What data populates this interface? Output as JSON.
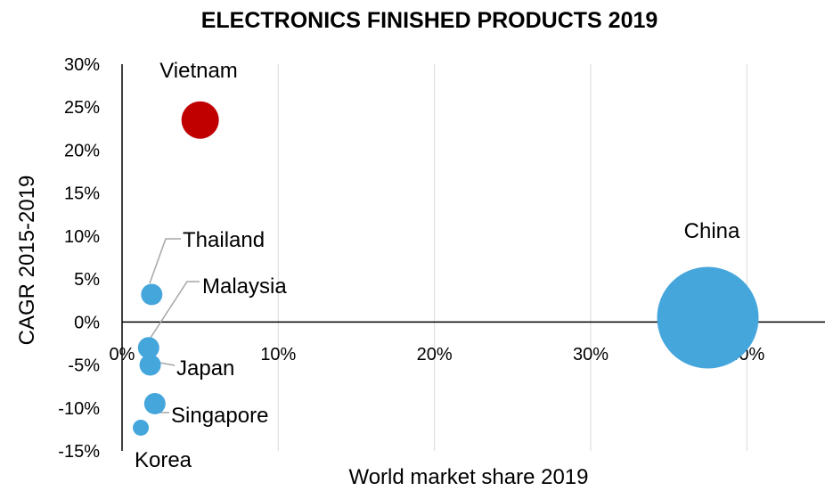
{
  "chart_data": {
    "type": "scatter",
    "title": "ELECTRONICS FINISHED PRODUCTS 2019",
    "xlabel": "World market share 2019",
    "ylabel": "CAGR 2015-2019",
    "xlim": [
      0,
      45
    ],
    "ylim": [
      -15,
      30
    ],
    "x_ticks": [
      "0%",
      "10%",
      "20%",
      "30%",
      "40%"
    ],
    "y_ticks": [
      "30%",
      "25%",
      "20%",
      "15%",
      "10%",
      "5%",
      "0%",
      "-5%",
      "-10%",
      "-15%"
    ],
    "grid": true,
    "points": [
      {
        "label": "Vietnam",
        "x": 5.0,
        "y": 23.5,
        "color": "#c00000",
        "size": "medium"
      },
      {
        "label": "China",
        "x": 37.5,
        "y": 0.5,
        "color": "#45a6dc",
        "size": "very-large"
      },
      {
        "label": "Thailand",
        "x": 1.9,
        "y": 3.2,
        "color": "#45a6dc",
        "size": "small"
      },
      {
        "label": "Malaysia",
        "x": 1.7,
        "y": -3.0,
        "color": "#45a6dc",
        "size": "small"
      },
      {
        "label": "Japan",
        "x": 1.8,
        "y": -5.0,
        "color": "#45a6dc",
        "size": "small"
      },
      {
        "label": "Singapore",
        "x": 2.1,
        "y": -9.5,
        "color": "#45a6dc",
        "size": "small"
      },
      {
        "label": "Korea",
        "x": 1.2,
        "y": -12.3,
        "color": "#45a6dc",
        "size": "tiny"
      }
    ]
  }
}
